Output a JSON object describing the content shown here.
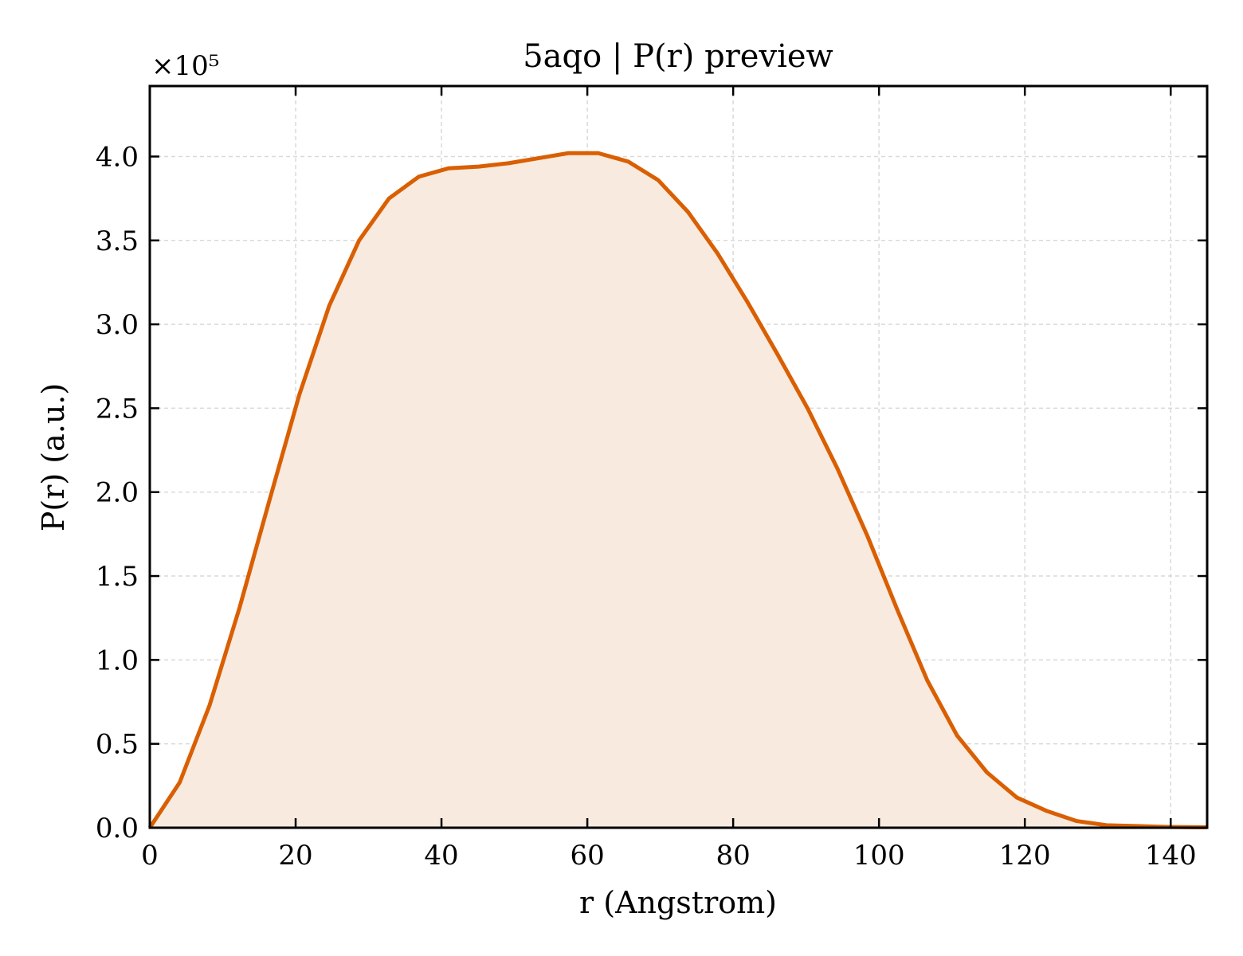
{
  "chart_data": {
    "type": "area",
    "title": "5aqo | P(r) preview",
    "xlabel": "r (Angstrom)",
    "ylabel": "P(r) (a.u.)",
    "y_multiplier": "×10⁵",
    "xlim": [
      0,
      145
    ],
    "ylim": [
      0,
      4.42
    ],
    "x_ticks": [
      0,
      20,
      40,
      60,
      80,
      100,
      120,
      140
    ],
    "y_ticks": [
      0.0,
      0.5,
      1.0,
      1.5,
      2.0,
      2.5,
      3.0,
      3.5,
      4.0
    ],
    "x_tick_labels": [
      "0",
      "20",
      "40",
      "60",
      "80",
      "100",
      "120",
      "140"
    ],
    "y_tick_labels": [
      "0.0",
      "0.5",
      "1.0",
      "1.5",
      "2.0",
      "2.5",
      "3.0",
      "3.5",
      "4.0"
    ],
    "grid": true,
    "series": [
      {
        "x": [
          0,
          4.1,
          8.2,
          12.3,
          16.4,
          20.5,
          24.6,
          28.7,
          32.8,
          36.9,
          41.0,
          45.1,
          49.2,
          53.3,
          57.4,
          61.5,
          65.6,
          69.7,
          73.8,
          77.9,
          82.0,
          86.1,
          90.2,
          94.3,
          98.4,
          102.5,
          106.6,
          110.7,
          114.8,
          118.9,
          123.0,
          127.1,
          131.2,
          135.3,
          139.4,
          143.5,
          145
        ],
        "values": [
          0.0,
          0.27,
          0.73,
          1.31,
          1.95,
          2.58,
          3.11,
          3.5,
          3.75,
          3.88,
          3.93,
          3.94,
          3.96,
          3.99,
          4.02,
          4.02,
          3.97,
          3.86,
          3.67,
          3.42,
          3.13,
          2.82,
          2.5,
          2.14,
          1.74,
          1.3,
          0.88,
          0.55,
          0.33,
          0.18,
          0.1,
          0.04,
          0.015,
          0.01,
          0.005,
          0.003,
          0.003
        ]
      }
    ],
    "colors": {
      "line": "#d95f02",
      "fill": "#f8eadf",
      "grid": "#d9d9d9"
    }
  }
}
